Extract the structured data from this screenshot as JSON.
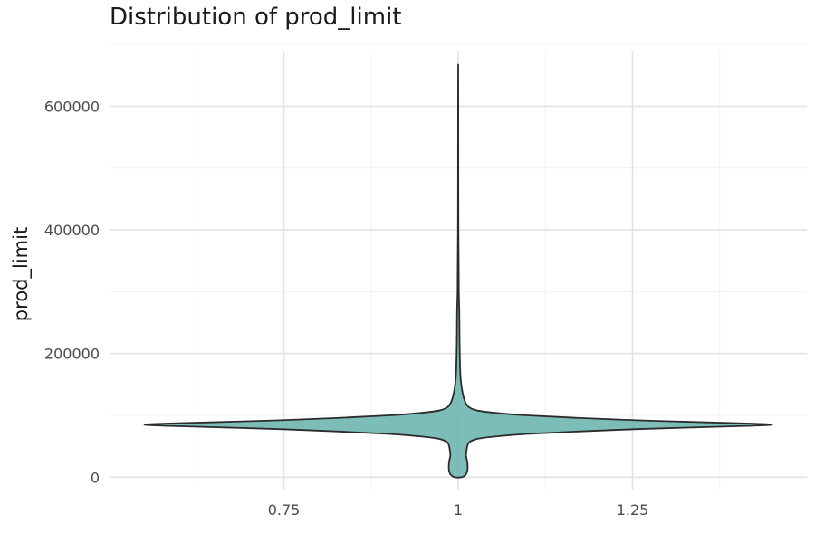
{
  "chart_data": {
    "type": "violin",
    "title": "Distribution of prod_limit",
    "xlabel": "",
    "ylabel": "prod_limit",
    "x_ticks": [
      "0.75",
      "1",
      "1.25"
    ],
    "x_tick_values": [
      0.75,
      1,
      1.25
    ],
    "xlim": [
      0.5,
      1.5
    ],
    "y_ticks": [
      "0",
      "200000",
      "400000",
      "600000"
    ],
    "y_tick_values": [
      0,
      200000,
      400000,
      600000
    ],
    "ylim": [
      -20000,
      690000
    ],
    "grid": true,
    "legend": "none",
    "fill_color": "#66b2ac",
    "outline_color": "#2b2b2b",
    "violin": {
      "center_x": 1,
      "max_half_width": 0.45,
      "y_min": 0,
      "y_max": 660000,
      "density": [
        {
          "y": 0,
          "w": 0.011
        },
        {
          "y": 3000,
          "w": 0.022
        },
        {
          "y": 8000,
          "w": 0.028
        },
        {
          "y": 15000,
          "w": 0.03
        },
        {
          "y": 25000,
          "w": 0.029
        },
        {
          "y": 35000,
          "w": 0.025
        },
        {
          "y": 45000,
          "w": 0.027
        },
        {
          "y": 52000,
          "w": 0.03
        },
        {
          "y": 57000,
          "w": 0.036
        },
        {
          "y": 62000,
          "w": 0.06
        },
        {
          "y": 66000,
          "w": 0.12
        },
        {
          "y": 70000,
          "w": 0.22
        },
        {
          "y": 74000,
          "w": 0.38
        },
        {
          "y": 78000,
          "w": 0.58
        },
        {
          "y": 81000,
          "w": 0.78
        },
        {
          "y": 83000,
          "w": 0.92
        },
        {
          "y": 85000,
          "w": 1.0
        },
        {
          "y": 87000,
          "w": 0.92
        },
        {
          "y": 89000,
          "w": 0.78
        },
        {
          "y": 92000,
          "w": 0.58
        },
        {
          "y": 96000,
          "w": 0.38
        },
        {
          "y": 100000,
          "w": 0.22
        },
        {
          "y": 104000,
          "w": 0.12
        },
        {
          "y": 108000,
          "w": 0.06
        },
        {
          "y": 113000,
          "w": 0.035
        },
        {
          "y": 120000,
          "w": 0.024
        },
        {
          "y": 130000,
          "w": 0.017
        },
        {
          "y": 145000,
          "w": 0.011
        },
        {
          "y": 165000,
          "w": 0.007
        },
        {
          "y": 200000,
          "w": 0.005
        },
        {
          "y": 240000,
          "w": 0.004
        },
        {
          "y": 270000,
          "w": 0.0035
        },
        {
          "y": 300000,
          "w": 0.002
        },
        {
          "y": 340000,
          "w": 0.0015
        },
        {
          "y": 400000,
          "w": 0.0007
        },
        {
          "y": 500000,
          "w": 0.0004
        },
        {
          "y": 600000,
          "w": 0.0003
        },
        {
          "y": 660000,
          "w": 0.0
        }
      ]
    }
  }
}
